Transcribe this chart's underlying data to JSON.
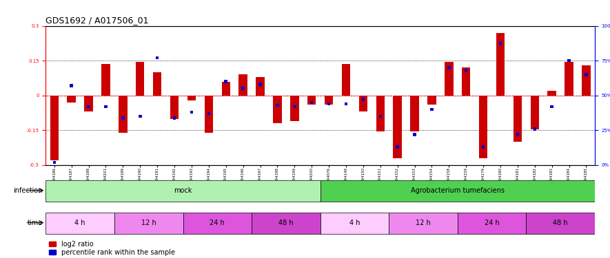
{
  "title": "GDS1692 / A017506_01",
  "samples": [
    "GSM94186",
    "GSM94187",
    "GSM94188",
    "GSM94201",
    "GSM94189",
    "GSM94190",
    "GSM94191",
    "GSM94192",
    "GSM94193",
    "GSM94194",
    "GSM94195",
    "GSM94196",
    "GSM94197",
    "GSM94198",
    "GSM94199",
    "GSM94200",
    "GSM94076",
    "GSM94149",
    "GSM94150",
    "GSM94151",
    "GSM94152",
    "GSM94153",
    "GSM94154",
    "GSM94158",
    "GSM94159",
    "GSM94179",
    "GSM94180",
    "GSM94181",
    "GSM94182",
    "GSM94183",
    "GSM94184",
    "GSM94185"
  ],
  "log2_ratio": [
    -0.28,
    -0.03,
    -0.07,
    0.135,
    -0.16,
    0.145,
    0.1,
    -0.1,
    -0.02,
    -0.16,
    0.06,
    0.09,
    0.08,
    -0.12,
    -0.11,
    -0.04,
    -0.04,
    0.135,
    -0.07,
    -0.155,
    -0.27,
    -0.155,
    -0.04,
    0.145,
    0.12,
    -0.27,
    0.27,
    -0.2,
    -0.145,
    0.02,
    0.145,
    0.13
  ],
  "percentile_rank": [
    2,
    57,
    42,
    42,
    34,
    35,
    77,
    34,
    38,
    37,
    60,
    55,
    58,
    43,
    42,
    45,
    44,
    44,
    47,
    35,
    13,
    22,
    40,
    70,
    68,
    13,
    87,
    22,
    26,
    42,
    75,
    65
  ],
  "infection_groups": [
    {
      "label": "mock",
      "start": 0,
      "end": 16,
      "color": "#b0f0b0"
    },
    {
      "label": "Agrobacterium tumefaciens",
      "start": 16,
      "end": 32,
      "color": "#50d050"
    }
  ],
  "time_groups": [
    {
      "label": "4 h",
      "start": 0,
      "end": 4,
      "color": "#ffccff"
    },
    {
      "label": "12 h",
      "start": 4,
      "end": 8,
      "color": "#ee88ee"
    },
    {
      "label": "24 h",
      "start": 8,
      "end": 12,
      "color": "#dd55dd"
    },
    {
      "label": "48 h",
      "start": 12,
      "end": 16,
      "color": "#cc44cc"
    },
    {
      "label": "4 h",
      "start": 16,
      "end": 20,
      "color": "#ffccff"
    },
    {
      "label": "12 h",
      "start": 20,
      "end": 24,
      "color": "#ee88ee"
    },
    {
      "label": "24 h",
      "start": 24,
      "end": 28,
      "color": "#dd55dd"
    },
    {
      "label": "48 h",
      "start": 28,
      "end": 32,
      "color": "#cc44cc"
    }
  ],
  "ylim": [
    -0.3,
    0.3
  ],
  "bar_color_red": "#cc0000",
  "bar_color_blue": "#0000cc",
  "bar_width": 0.5,
  "pct_bar_width": 0.18,
  "title_fontsize": 9,
  "tick_fontsize": 5,
  "label_fontsize": 7,
  "legend_fontsize": 7
}
